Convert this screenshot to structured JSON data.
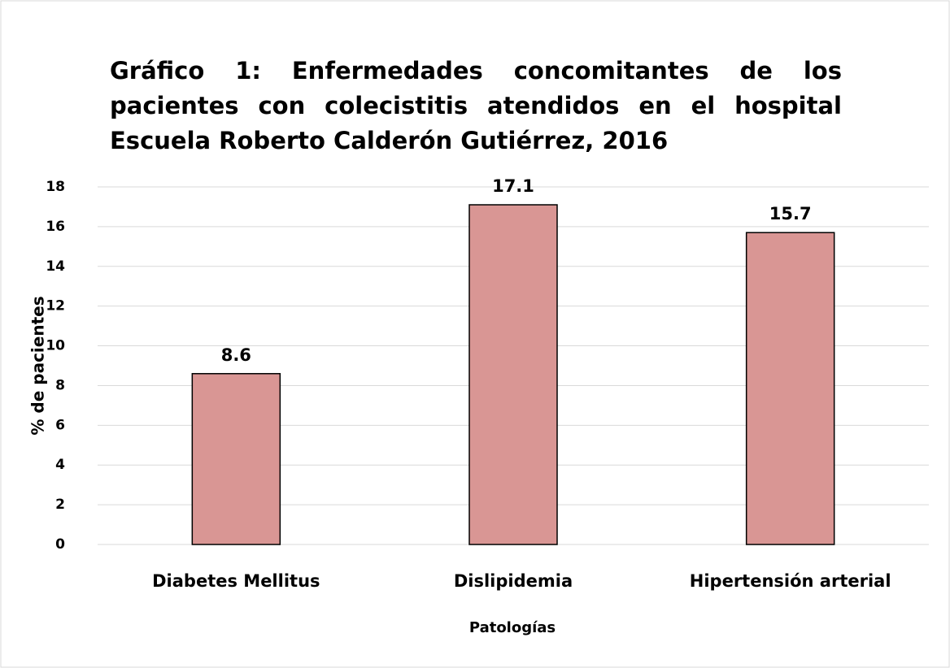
{
  "chart_data": {
    "type": "bar",
    "title": "Gráfico 1: Enfermedades concomitantes de los pacientes con colecistitis atendidos en el hospital Escuela Roberto Calderón Gutiérrez, 2016",
    "categories": [
      "Diabetes Mellitus",
      "Dislipidemia",
      "Hipertensión arterial"
    ],
    "values": [
      8.6,
      17.1,
      15.7
    ],
    "color": "#d99694",
    "x_label": "Patologías",
    "y_label": "% de pacientes",
    "ylim": [
      0,
      18
    ],
    "yticks": [
      0,
      2,
      4,
      6,
      8,
      10,
      12,
      14,
      16,
      18
    ],
    "grid": true
  }
}
